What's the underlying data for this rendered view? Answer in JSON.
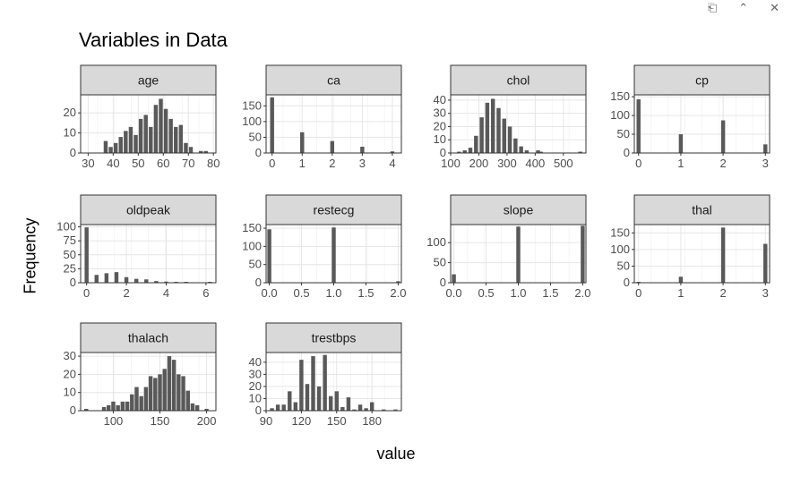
{
  "toolbar": {
    "icons": [
      "copy-icon",
      "collapse-icon",
      "close-icon"
    ]
  },
  "chart_data": {
    "type": "bar",
    "title": "Variables in Data",
    "xlabel": "value",
    "ylabel": "Frequency",
    "grid": true,
    "bar_color": "#595959",
    "strip_color": "#d9d9d9",
    "facets": [
      {
        "name": "age",
        "xlim": [
          27,
          81
        ],
        "ylim": [
          0,
          29
        ],
        "xticks": [
          30,
          40,
          50,
          60,
          70,
          80
        ],
        "yticks": [
          0,
          10,
          20
        ],
        "bars": [
          [
            37,
            6
          ],
          [
            39,
            3
          ],
          [
            41,
            5
          ],
          [
            43,
            8
          ],
          [
            45,
            11
          ],
          [
            47,
            13
          ],
          [
            49,
            9
          ],
          [
            51,
            17
          ],
          [
            53,
            19
          ],
          [
            55,
            13
          ],
          [
            57,
            24
          ],
          [
            59,
            27
          ],
          [
            61,
            22
          ],
          [
            63,
            17
          ],
          [
            65,
            13
          ],
          [
            67,
            14
          ],
          [
            69,
            5
          ],
          [
            71,
            3
          ],
          [
            75,
            1
          ],
          [
            77,
            1
          ]
        ]
      },
      {
        "name": "ca",
        "xlim": [
          -0.2,
          4.3
        ],
        "ylim": [
          0,
          185
        ],
        "xticks": [
          0,
          1,
          2,
          3,
          4
        ],
        "yticks": [
          0,
          50,
          100,
          150
        ],
        "bars": [
          [
            0,
            177
          ],
          [
            1,
            66
          ],
          [
            2,
            38
          ],
          [
            3,
            20
          ],
          [
            4,
            5
          ]
        ]
      },
      {
        "name": "chol",
        "xlim": [
          100,
          580
        ],
        "ylim": [
          0,
          44
        ],
        "xticks": [
          100,
          200,
          300,
          400,
          500
        ],
        "yticks": [
          0,
          10,
          20,
          30,
          40
        ],
        "bars": [
          [
            130,
            1
          ],
          [
            150,
            2
          ],
          [
            170,
            4
          ],
          [
            190,
            13
          ],
          [
            210,
            27
          ],
          [
            230,
            38
          ],
          [
            250,
            41
          ],
          [
            270,
            34
          ],
          [
            290,
            26
          ],
          [
            310,
            20
          ],
          [
            330,
            11
          ],
          [
            350,
            5
          ],
          [
            370,
            2
          ],
          [
            410,
            2
          ],
          [
            420,
            1
          ],
          [
            560,
            1
          ]
        ]
      },
      {
        "name": "cp",
        "xlim": [
          -0.1,
          3.1
        ],
        "ylim": [
          0,
          155
        ],
        "xticks": [
          0,
          1,
          2,
          3
        ],
        "yticks": [
          0,
          50,
          100,
          150
        ],
        "bars": [
          [
            0,
            143
          ],
          [
            1,
            50
          ],
          [
            2,
            87
          ],
          [
            3,
            23
          ]
        ]
      },
      {
        "name": "oldpeak",
        "xlim": [
          -0.3,
          6.5
        ],
        "ylim": [
          0,
          104
        ],
        "xticks": [
          0,
          2,
          4,
          6
        ],
        "yticks": [
          0,
          25,
          50,
          75,
          100
        ],
        "bars": [
          [
            0,
            99
          ],
          [
            0.5,
            14
          ],
          [
            1,
            17
          ],
          [
            1.5,
            19
          ],
          [
            2,
            10
          ],
          [
            2.5,
            7
          ],
          [
            3,
            6
          ],
          [
            3.5,
            3
          ],
          [
            4,
            2
          ],
          [
            4.5,
            1
          ],
          [
            5,
            0.5
          ],
          [
            6.2,
            0.5
          ]
        ]
      },
      {
        "name": "restecg",
        "xlim": [
          -0.05,
          2.05
        ],
        "ylim": [
          0,
          160
        ],
        "xticks": [
          "0.0",
          "0.5",
          "1.0",
          "1.5",
          "2.0"
        ],
        "yticks": [
          0,
          50,
          100,
          150
        ],
        "bars": [
          [
            0,
            147
          ],
          [
            1,
            152
          ],
          [
            2,
            4
          ]
        ]
      },
      {
        "name": "slope",
        "xlim": [
          -0.05,
          2.05
        ],
        "ylim": [
          0,
          145
        ],
        "xticks": [
          "0.0",
          "0.5",
          "1.0",
          "1.5",
          "2.0"
        ],
        "yticks": [
          0,
          50,
          100
        ],
        "bars": [
          [
            0,
            21
          ],
          [
            1,
            140
          ],
          [
            2,
            142
          ]
        ]
      },
      {
        "name": "thal",
        "xlim": [
          -0.1,
          3.1
        ],
        "ylim": [
          0,
          175
        ],
        "xticks": [
          0,
          1,
          2,
          3
        ],
        "yticks": [
          0,
          50,
          100,
          150
        ],
        "bars": [
          [
            0,
            2
          ],
          [
            1,
            18
          ],
          [
            2,
            166
          ],
          [
            3,
            117
          ]
        ]
      },
      {
        "name": "thalach",
        "xlim": [
          65,
          210
        ],
        "ylim": [
          0,
          32
        ],
        "xticks": [
          100,
          150,
          200
        ],
        "yticks": [
          0,
          10,
          20,
          30
        ],
        "bars": [
          [
            71,
            1
          ],
          [
            90,
            2
          ],
          [
            95,
            3
          ],
          [
            100,
            5
          ],
          [
            105,
            3
          ],
          [
            110,
            5
          ],
          [
            115,
            5
          ],
          [
            120,
            9
          ],
          [
            125,
            13
          ],
          [
            130,
            8
          ],
          [
            135,
            13
          ],
          [
            140,
            19
          ],
          [
            145,
            18
          ],
          [
            150,
            20
          ],
          [
            155,
            23
          ],
          [
            160,
            30
          ],
          [
            165,
            28
          ],
          [
            170,
            20
          ],
          [
            175,
            19
          ],
          [
            180,
            11
          ],
          [
            185,
            4
          ],
          [
            190,
            3
          ],
          [
            200,
            1
          ]
        ]
      },
      {
        "name": "trestbps",
        "xlim": [
          90,
          205
        ],
        "ylim": [
          0,
          48
        ],
        "xticks": [
          90,
          120,
          150,
          180
        ],
        "yticks": [
          0,
          10,
          20,
          30,
          40
        ],
        "bars": [
          [
            95,
            2
          ],
          [
            100,
            5
          ],
          [
            105,
            5
          ],
          [
            110,
            16
          ],
          [
            115,
            7
          ],
          [
            120,
            42
          ],
          [
            125,
            22
          ],
          [
            130,
            45
          ],
          [
            135,
            20
          ],
          [
            140,
            46
          ],
          [
            145,
            12
          ],
          [
            150,
            16
          ],
          [
            155,
            3
          ],
          [
            160,
            11
          ],
          [
            165,
            1
          ],
          [
            170,
            5
          ],
          [
            175,
            2
          ],
          [
            180,
            7
          ],
          [
            190,
            1
          ],
          [
            200,
            1
          ]
        ]
      }
    ]
  }
}
